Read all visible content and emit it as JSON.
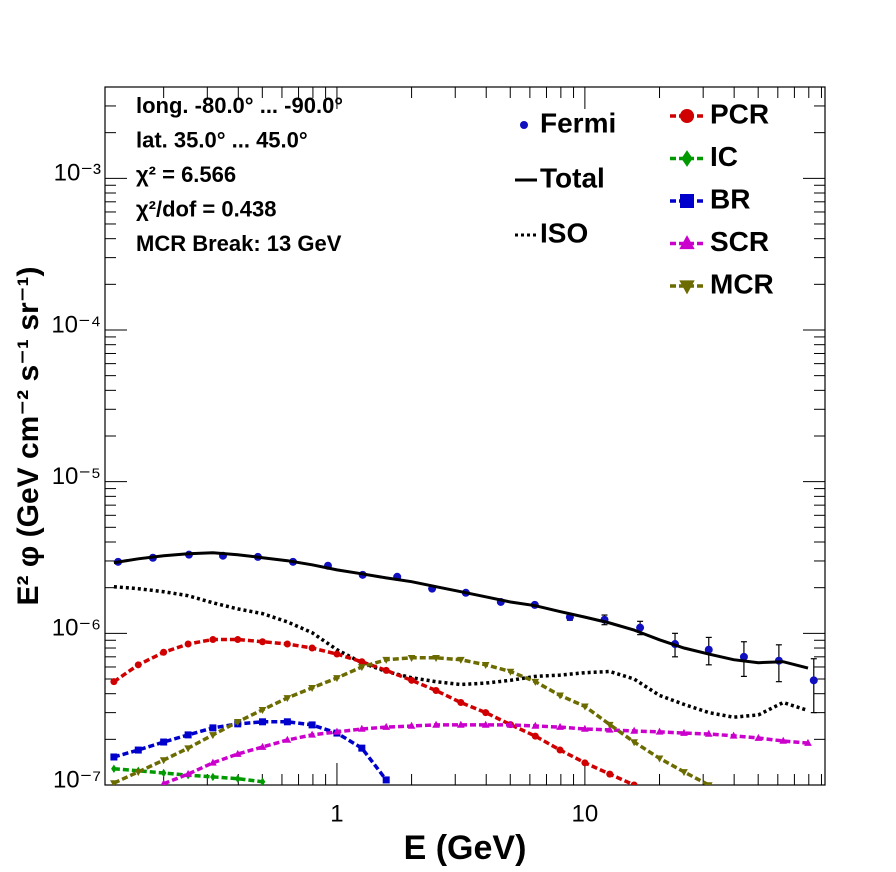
{
  "chart_data": {
    "type": "line",
    "logx": true,
    "logy": true,
    "xlabel": "E (GeV)",
    "ylabel": "E² φ (GeV cm⁻² s⁻¹ sr⁻¹)",
    "xlim": [
      0.116,
      93
    ],
    "ylim": [
      1e-07,
      0.004
    ],
    "xticks": [
      1,
      10
    ],
    "yticks": [
      {
        "value": 1e-07,
        "label": "10⁻⁷"
      },
      {
        "value": 1e-06,
        "label": "10⁻⁶"
      },
      {
        "value": 1e-05,
        "label": "10⁻⁵"
      },
      {
        "value": 0.0001,
        "label": "10⁻⁴"
      },
      {
        "value": 0.001,
        "label": "10⁻³"
      }
    ],
    "annotations": [
      "long. -80.0° ... -90.0°",
      "lat. 35.0° ... 45.0°",
      "χ² = 6.566",
      "χ²/dof = 0.438",
      "MCR Break: 13 GeV"
    ],
    "x": [
      0.126,
      0.158,
      0.2,
      0.251,
      0.316,
      0.398,
      0.501,
      0.631,
      0.794,
      1,
      1.26,
      1.58,
      2,
      2.51,
      3.16,
      3.98,
      5.01,
      6.31,
      7.94,
      10,
      12.6,
      15.8,
      20,
      25.1,
      31.6,
      39.8,
      50.1,
      63.1,
      79.4
    ],
    "series": [
      {
        "name": "Fermi",
        "color": "#1010c0",
        "style": "points",
        "marker": "circle",
        "x": [
          0.131,
          0.181,
          0.253,
          0.347,
          0.48,
          0.665,
          0.92,
          1.27,
          1.75,
          2.42,
          3.31,
          4.58,
          6.28,
          8.7,
          12.0,
          16.7,
          23.1,
          31.6,
          43.8,
          60.6,
          83.8
        ],
        "values": [
          2.96e-06,
          3.15e-06,
          3.3e-06,
          3.25e-06,
          3.19e-06,
          2.96e-06,
          2.79e-06,
          2.43e-06,
          2.36e-06,
          1.97e-06,
          1.85e-06,
          1.61e-06,
          1.54e-06,
          1.28e-06,
          1.23e-06,
          1.09e-06,
          8.5e-07,
          7.8e-07,
          7e-07,
          6.6e-07,
          4.9e-07
        ],
        "errors": [
          3e-08,
          3e-08,
          3e-08,
          3e-08,
          3e-08,
          3e-08,
          3e-08,
          3e-08,
          3e-08,
          3e-08,
          3e-08,
          3e-08,
          3e-08,
          6e-08,
          9e-08,
          1.1e-07,
          1.5e-07,
          1.6e-07,
          1.8e-07,
          1.8e-07,
          1.9e-07
        ]
      },
      {
        "name": "Total",
        "color": "#000000",
        "style": "solid",
        "values": [
          2.92e-06,
          3.1e-06,
          3.25e-06,
          3.35e-06,
          3.4e-06,
          3.3e-06,
          3.15e-06,
          3.01e-06,
          2.83e-06,
          2.62e-06,
          2.47e-06,
          2.32e-06,
          2.19e-06,
          2.03e-06,
          1.88e-06,
          1.74e-06,
          1.61e-06,
          1.52e-06,
          1.39e-06,
          1.28e-06,
          1.17e-06,
          1.05e-06,
          9.06e-07,
          8e-07,
          7.3e-07,
          6.7e-07,
          6.4e-07,
          6.5e-07,
          5.9e-07
        ]
      },
      {
        "name": "ISO",
        "color": "#000000",
        "style": "dotted",
        "values": [
          2.03e-06,
          1.97e-06,
          1.88e-06,
          1.77e-06,
          1.59e-06,
          1.45e-06,
          1.35e-06,
          1.19e-06,
          1.01e-06,
          7.8e-07,
          6.4e-07,
          5.6e-07,
          5.1e-07,
          4.8e-07,
          4.6e-07,
          4.7e-07,
          4.9e-07,
          5.2e-07,
          5.3e-07,
          5.5e-07,
          5.6e-07,
          5e-07,
          3.9e-07,
          3.4e-07,
          3e-07,
          2.8e-07,
          2.9e-07,
          3.5e-07,
          3.1e-07
        ]
      },
      {
        "name": "PCR",
        "color": "#d00000",
        "style": "dashed",
        "marker": "circle",
        "values": [
          4.8e-07,
          6.2e-07,
          7.5e-07,
          8.5e-07,
          9.1e-07,
          9.1e-07,
          8.8e-07,
          8.5e-07,
          8e-07,
          7.3e-07,
          6.5e-07,
          5.7e-07,
          4.9e-07,
          4.2e-07,
          3.5e-07,
          3e-07,
          2.5e-07,
          2.1e-07,
          1.7e-07,
          1.4e-07,
          1.18e-07,
          1e-07,
          null,
          null,
          null,
          null,
          null,
          null,
          null
        ]
      },
      {
        "name": "IC",
        "color": "#009a00",
        "style": "dashed",
        "marker": "diamond",
        "values": [
          1.28e-07,
          1.24e-07,
          1.2e-07,
          1.16e-07,
          1.13e-07,
          1.1e-07,
          1.05e-07,
          null,
          null,
          null,
          null,
          null,
          null,
          null,
          null,
          null,
          null,
          null,
          null,
          null,
          null,
          null,
          null,
          null,
          null,
          null,
          null,
          null,
          null
        ]
      },
      {
        "name": "BR",
        "color": "#0000cc",
        "style": "dashed",
        "marker": "square",
        "values": [
          1.53e-07,
          1.7e-07,
          1.92e-07,
          2.14e-07,
          2.38e-07,
          2.53e-07,
          2.61e-07,
          2.61e-07,
          2.49e-07,
          2.2e-07,
          1.75e-07,
          1.08e-07,
          null,
          null,
          null,
          null,
          null,
          null,
          null,
          null,
          null,
          null,
          null,
          null,
          null,
          null,
          null,
          null,
          null
        ]
      },
      {
        "name": "SCR",
        "color": "#cc00cc",
        "style": "dashed",
        "marker": "triangle-up",
        "values": [
          null,
          null,
          1.02e-07,
          1.18e-07,
          1.4e-07,
          1.6e-07,
          1.78e-07,
          1.98e-07,
          2.14e-07,
          2.24e-07,
          2.34e-07,
          2.41e-07,
          2.45e-07,
          2.49e-07,
          2.49e-07,
          2.49e-07,
          2.49e-07,
          2.45e-07,
          2.41e-07,
          2.34e-07,
          2.31e-07,
          2.27e-07,
          2.24e-07,
          2.2e-07,
          2.17e-07,
          2.11e-07,
          2.04e-07,
          1.95e-07,
          1.89e-07
        ]
      },
      {
        "name": "MCR",
        "color": "#6b6b00",
        "style": "dashed",
        "marker": "triangle-down",
        "values": [
          1.03e-07,
          1.22e-07,
          1.46e-07,
          1.75e-07,
          2.14e-07,
          2.61e-07,
          3.13e-07,
          3.75e-07,
          4.37e-07,
          5.08e-07,
          6e-07,
          6.7e-07,
          6.9e-07,
          6.9e-07,
          6.7e-07,
          6.2e-07,
          5.6e-07,
          4.8e-07,
          3.9e-07,
          3.3e-07,
          2.5e-07,
          1.92e-07,
          1.5e-07,
          1.22e-07,
          1e-07,
          null,
          null,
          null,
          null
        ]
      }
    ]
  }
}
